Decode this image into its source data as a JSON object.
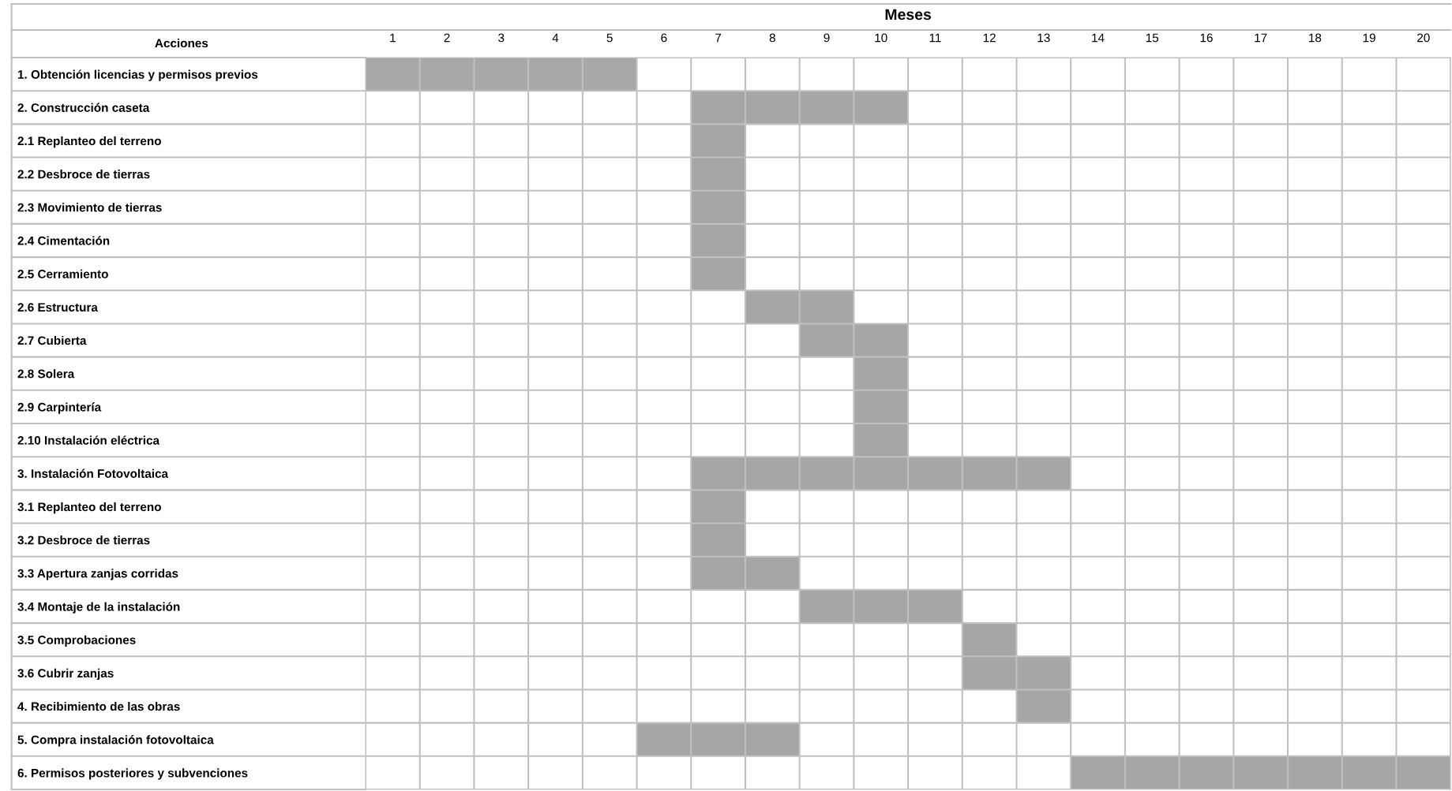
{
  "chart_data": {
    "type": "bar",
    "orientation": "horizontal",
    "xlabel": "Meses",
    "ylabel": "Acciones",
    "categories": [
      "1. Obtención licencias y permisos previos",
      "2. Construcción caseta",
      "2.1 Replanteo del terreno",
      "2.2 Desbroce de tierras",
      "2.3 Movimiento de tierras",
      "2.4 Cimentación",
      "2.5 Cerramiento",
      "2.6 Estructura",
      "2.7 Cubierta",
      "2.8 Solera",
      "2.9 Carpintería",
      "2.10 Instalación eléctrica",
      "3. Instalación Fotovoltaica",
      "3.1 Replanteo del terreno",
      "3.2 Desbroce de tierras",
      "3.3 Apertura zanjas corridas",
      "3.4 Montaje de la instalación",
      "3.5 Comprobaciones",
      "3.6 Cubrir zanjas",
      "4. Recibimiento de las obras",
      "5. Compra instalación fotovoltaica",
      "6. Permisos posteriores y subvenciones"
    ],
    "base": [
      0,
      6,
      6,
      6,
      6,
      6,
      6,
      7,
      8,
      9,
      9,
      9,
      6,
      6,
      6,
      6,
      8,
      11,
      11,
      12,
      5,
      13
    ],
    "values": [
      5,
      4,
      1,
      1,
      1,
      1,
      1,
      2,
      2,
      1,
      1,
      1,
      7,
      1,
      1,
      2,
      3,
      1,
      2,
      1,
      3,
      7
    ],
    "colors": [
      "#aaa7a7",
      "#a6a6a6",
      "#a6a6a6",
      "#a6a6a6",
      "#a6a6a6",
      "#a6a6a6",
      "#a6a6a6",
      "#a6a6a6",
      "#a6a6a6",
      "#a6a6a6",
      "#a6a6a6",
      "#a6a6a6",
      "#a6a6a6",
      "#a6a6a6",
      "#a6a6a6",
      "#a6a6a6",
      "#a6a6a6",
      "#a6a6a6",
      "#a6a6a6",
      "#a6a6a6",
      "#a6a6a6",
      "#a6a6a6"
    ],
    "xlim": [
      0,
      20
    ],
    "xticks": [
      {
        "value": 0.5,
        "label": "1"
      },
      {
        "value": 1.5,
        "label": "2"
      },
      {
        "value": 2.5,
        "label": "3"
      },
      {
        "value": 3.5,
        "label": "4"
      },
      {
        "value": 4.5,
        "label": "5"
      },
      {
        "value": 5.5,
        "label": "6"
      },
      {
        "value": 6.5,
        "label": "7"
      },
      {
        "value": 7.5,
        "label": "8"
      },
      {
        "value": 8.5,
        "label": "9"
      },
      {
        "value": 9.5,
        "label": "10"
      },
      {
        "value": 10.5,
        "label": "11"
      },
      {
        "value": 11.5,
        "label": "12"
      },
      {
        "value": 12.5,
        "label": "13"
      },
      {
        "value": 13.5,
        "label": "14"
      },
      {
        "value": 14.5,
        "label": "15"
      },
      {
        "value": 15.5,
        "label": "16"
      },
      {
        "value": 16.5,
        "label": "17"
      },
      {
        "value": 17.5,
        "label": "18"
      },
      {
        "value": 18.5,
        "label": "19"
      },
      {
        "value": 19.5,
        "label": "20"
      }
    ],
    "grid": true,
    "legend": false
  }
}
